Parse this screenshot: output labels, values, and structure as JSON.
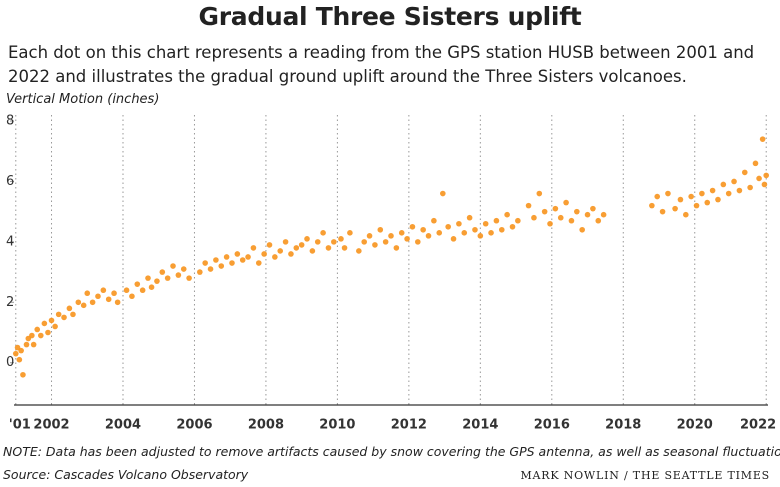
{
  "chart_data": {
    "type": "scatter",
    "title": "Gradual Three Sisters uplift",
    "subtitle": "Each dot on this chart represents a reading from the GPS station HUSB between 2001 and 2022 and illustrates the gradual ground uplift around the Three Sisters volcanoes.",
    "y_label": "Vertical Motion (inches)",
    "note": "NOTE: Data has been adjusted to remove artifacts caused by snow covering the GPS antenna, as well as seasonal fluctuations.",
    "source": "Source: Cascades Volcano Observatory",
    "credit": "MARK NOWLIN / THE SEATTLE TIMES",
    "color": "#f7941d",
    "xlim": [
      2000.95,
      2022.05
    ],
    "ylim": [
      -1.4,
      8.2
    ],
    "xticks": [
      {
        "value": 2001,
        "label": "'01"
      },
      2002,
      2004,
      2006,
      2008,
      2010,
      2012,
      2014,
      2016,
      2018,
      2020,
      2022
    ],
    "yticks": [
      0,
      2,
      4,
      6,
      8
    ],
    "x_grid": true,
    "x": [
      2001.0,
      2001.05,
      2001.1,
      2001.15,
      2001.2,
      2001.3,
      2001.35,
      2001.45,
      2001.5,
      2001.6,
      2001.7,
      2001.8,
      2001.9,
      2002.0,
      2002.1,
      2002.2,
      2002.35,
      2002.5,
      2002.6,
      2002.75,
      2002.9,
      2003.0,
      2003.15,
      2003.3,
      2003.45,
      2003.6,
      2003.75,
      2003.85,
      2004.1,
      2004.25,
      2004.4,
      2004.55,
      2004.7,
      2004.8,
      2004.95,
      2005.1,
      2005.25,
      2005.4,
      2005.55,
      2005.7,
      2005.85,
      2006.15,
      2006.3,
      2006.45,
      2006.6,
      2006.75,
      2006.9,
      2007.05,
      2007.2,
      2007.35,
      2007.5,
      2007.65,
      2007.8,
      2007.95,
      2008.1,
      2008.25,
      2008.4,
      2008.55,
      2008.7,
      2008.85,
      2009.0,
      2009.15,
      2009.3,
      2009.45,
      2009.6,
      2009.75,
      2009.9,
      2010.1,
      2010.2,
      2010.35,
      2010.6,
      2010.75,
      2010.9,
      2011.05,
      2011.2,
      2011.35,
      2011.5,
      2011.65,
      2011.8,
      2011.95,
      2012.1,
      2012.25,
      2012.4,
      2012.55,
      2012.7,
      2012.85,
      2012.95,
      2013.1,
      2013.25,
      2013.4,
      2013.55,
      2013.7,
      2013.85,
      2014.0,
      2014.15,
      2014.3,
      2014.45,
      2014.6,
      2014.75,
      2014.9,
      2015.05,
      2015.35,
      2015.5,
      2015.65,
      2015.8,
      2015.95,
      2016.1,
      2016.25,
      2016.4,
      2016.55,
      2016.7,
      2016.85,
      2017.0,
      2017.15,
      2017.3,
      2017.45,
      2018.8,
      2018.95,
      2019.1,
      2019.25,
      2019.45,
      2019.6,
      2019.75,
      2019.9,
      2020.05,
      2020.2,
      2020.35,
      2020.5,
      2020.65,
      2020.8,
      2020.95,
      2021.1,
      2021.25,
      2021.4,
      2021.55,
      2021.7,
      2021.8,
      2021.9,
      2021.95,
      2022.0
    ],
    "values": [
      0.3,
      0.5,
      0.1,
      0.4,
      -0.4,
      0.6,
      0.8,
      0.9,
      0.6,
      1.1,
      0.9,
      1.3,
      1.0,
      1.4,
      1.2,
      1.6,
      1.5,
      1.8,
      1.6,
      2.0,
      1.9,
      2.3,
      2.0,
      2.2,
      2.4,
      2.1,
      2.3,
      2.0,
      2.4,
      2.2,
      2.6,
      2.4,
      2.8,
      2.5,
      2.7,
      3.0,
      2.8,
      3.2,
      2.9,
      3.1,
      2.8,
      3.0,
      3.3,
      3.1,
      3.4,
      3.2,
      3.5,
      3.3,
      3.6,
      3.4,
      3.5,
      3.8,
      3.3,
      3.6,
      3.9,
      3.5,
      3.7,
      4.0,
      3.6,
      3.8,
      3.9,
      4.1,
      3.7,
      4.0,
      4.3,
      3.8,
      4.0,
      4.1,
      3.8,
      4.3,
      3.7,
      4.0,
      4.2,
      3.9,
      4.4,
      4.0,
      4.2,
      3.8,
      4.3,
      4.1,
      4.5,
      4.0,
      4.4,
      4.2,
      4.7,
      4.3,
      5.6,
      4.5,
      4.1,
      4.6,
      4.3,
      4.8,
      4.4,
      4.2,
      4.6,
      4.3,
      4.7,
      4.4,
      4.9,
      4.5,
      4.7,
      5.2,
      4.8,
      5.6,
      5.0,
      4.6,
      5.1,
      4.8,
      5.3,
      4.7,
      5.0,
      4.4,
      4.9,
      5.1,
      4.7,
      4.9,
      5.2,
      5.5,
      5.0,
      5.6,
      5.1,
      5.4,
      4.9,
      5.5,
      5.2,
      5.6,
      5.3,
      5.7,
      5.4,
      5.9,
      5.6,
      6.0,
      5.7,
      6.3,
      5.8,
      6.6,
      6.1,
      7.4,
      5.9,
      6.2
    ]
  }
}
